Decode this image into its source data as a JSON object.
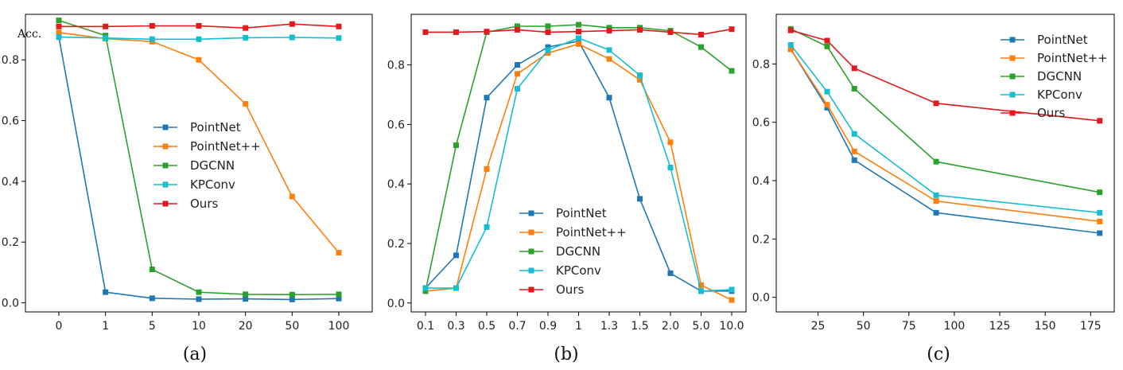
{
  "colors": {
    "PointNet": "#1f77b4",
    "PointNet++": "#ff7f0e",
    "DGCNN": "#2ca02c",
    "KPConv": "#17becf",
    "Ours": "#e31a1c"
  },
  "chart_data": [
    {
      "type": "line",
      "caption": "(a)",
      "ylabel": "Acc.",
      "x_scale": "categorical",
      "categories": [
        "0",
        "1",
        "5",
        "10",
        "20",
        "50",
        "100"
      ],
      "ylim": [
        -0.03,
        0.95
      ],
      "yticks": [
        0.0,
        0.2,
        0.4,
        0.6,
        0.8
      ],
      "ytick_labels": [
        "0.0",
        "0.2",
        "0.4",
        "0.6",
        "0.8"
      ],
      "legend_position": "center",
      "series": [
        {
          "name": "PointNet",
          "values": [
            0.875,
            0.035,
            0.015,
            0.012,
            0.013,
            0.011,
            0.014
          ]
        },
        {
          "name": "PointNet++",
          "values": [
            0.89,
            0.87,
            0.86,
            0.8,
            0.655,
            0.35,
            0.165
          ]
        },
        {
          "name": "DGCNN",
          "values": [
            0.93,
            0.88,
            0.11,
            0.035,
            0.028,
            0.027,
            0.028
          ]
        },
        {
          "name": "KPConv",
          "values": [
            0.875,
            0.872,
            0.868,
            0.868,
            0.873,
            0.874,
            0.872
          ]
        },
        {
          "name": "Ours",
          "values": [
            0.91,
            0.91,
            0.912,
            0.912,
            0.905,
            0.918,
            0.91
          ]
        }
      ]
    },
    {
      "type": "line",
      "caption": "(b)",
      "ylabel": "",
      "x_scale": "categorical",
      "categories": [
        "0.1",
        "0.3",
        "0.5",
        "0.7",
        "0.9",
        "1",
        "1.3",
        "1.5",
        "2.0",
        "5.0",
        "10.0"
      ],
      "ylim": [
        -0.03,
        0.97
      ],
      "yticks": [
        0.0,
        0.2,
        0.4,
        0.6,
        0.8
      ],
      "ytick_labels": [
        "0.0",
        "0.2",
        "0.4",
        "0.6",
        "0.8"
      ],
      "legend_position": "lower-center",
      "series": [
        {
          "name": "PointNet",
          "values": [
            0.05,
            0.16,
            0.69,
            0.8,
            0.86,
            0.88,
            0.69,
            0.35,
            0.1,
            0.04,
            0.04
          ]
        },
        {
          "name": "PointNet++",
          "values": [
            0.04,
            0.05,
            0.45,
            0.77,
            0.84,
            0.87,
            0.82,
            0.75,
            0.54,
            0.06,
            0.01
          ]
        },
        {
          "name": "DGCNN",
          "values": [
            0.04,
            0.53,
            0.91,
            0.93,
            0.93,
            0.935,
            0.925,
            0.925,
            0.915,
            0.86,
            0.78
          ]
        },
        {
          "name": "KPConv",
          "values": [
            0.05,
            0.05,
            0.255,
            0.72,
            0.85,
            0.89,
            0.85,
            0.765,
            0.455,
            0.04,
            0.045
          ]
        },
        {
          "name": "Ours",
          "values": [
            0.91,
            0.91,
            0.912,
            0.918,
            0.91,
            0.912,
            0.915,
            0.918,
            0.91,
            0.902,
            0.92
          ]
        }
      ]
    },
    {
      "type": "line",
      "caption": "(c)",
      "ylabel": "",
      "x_scale": "linear",
      "x": [
        10,
        30,
        45,
        90,
        180
      ],
      "xlim": [
        2,
        188
      ],
      "xticks": [
        25,
        50,
        75,
        100,
        125,
        150,
        175
      ],
      "xtick_labels": [
        "25",
        "50",
        "75",
        "100",
        "125",
        "150",
        "175"
      ],
      "ylim": [
        -0.05,
        0.97
      ],
      "yticks": [
        0.0,
        0.2,
        0.4,
        0.6,
        0.8
      ],
      "ytick_labels": [
        "0.0",
        "0.2",
        "0.4",
        "0.6",
        "0.8"
      ],
      "legend_position": "upper-right",
      "series": [
        {
          "name": "PointNet",
          "values": [
            0.85,
            0.65,
            0.47,
            0.29,
            0.22
          ]
        },
        {
          "name": "PointNet++",
          "values": [
            0.85,
            0.66,
            0.5,
            0.33,
            0.26
          ]
        },
        {
          "name": "DGCNN",
          "values": [
            0.92,
            0.86,
            0.715,
            0.465,
            0.36
          ]
        },
        {
          "name": "KPConv",
          "values": [
            0.865,
            0.705,
            0.56,
            0.35,
            0.29
          ]
        },
        {
          "name": "Ours",
          "values": [
            0.915,
            0.88,
            0.785,
            0.665,
            0.605
          ]
        }
      ]
    }
  ]
}
